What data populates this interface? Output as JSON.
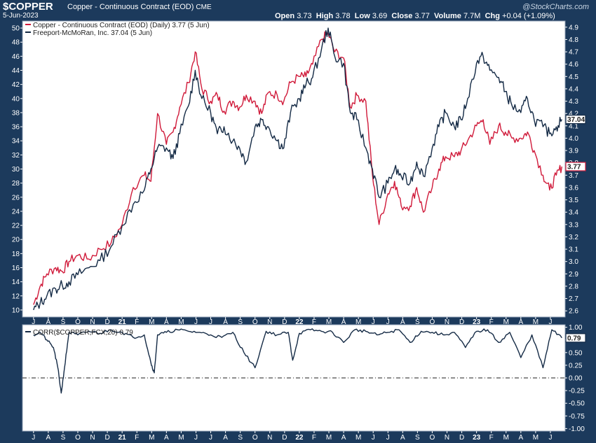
{
  "header": {
    "ticker": "$COPPER",
    "name": "Copper - Continuous Contract (EOD)",
    "exchange": "CME",
    "date": "5-Jun-2023",
    "logo": "@StockCharts.com",
    "ohlc": {
      "open_label": "Open",
      "open": "3.73",
      "high_label": "High",
      "high": "3.78",
      "low_label": "Low",
      "low": "3.69",
      "close_label": "Close",
      "close": "3.77",
      "volume_label": "Volume",
      "volume": "7.7M",
      "chg_label": "Chg",
      "chg": "+0.04 (+1.09%)"
    }
  },
  "colors": {
    "background": "#1c3a5c",
    "panel": "#ffffff",
    "copper": "#d01a3a",
    "fcx": "#142a45",
    "corr": "#142a45"
  },
  "chart_data": [
    {
      "type": "line",
      "legend_position": "top-left",
      "series": [
        {
          "name": "Copper - Continuous Contract (EOD) (Daily) 3.77 (5 Jun)",
          "axis": "right",
          "last_value_label": "3.77",
          "x": [
            0,
            0.3,
            0.6,
            1,
            1.3,
            1.6,
            2,
            2.5,
            3,
            3.5,
            4,
            4.5,
            5,
            5.3,
            5.6,
            6,
            6.3,
            6.6,
            7,
            7.3,
            7.6,
            8,
            8.3,
            8.6,
            9,
            9.3,
            9.6,
            10,
            10.3,
            10.6,
            11,
            11.3,
            11.6,
            12,
            12.3,
            12.6,
            13,
            13.3,
            13.6,
            14,
            14.3,
            14.6,
            15,
            15.3,
            15.6,
            16,
            16.3,
            16.6,
            17,
            17.3,
            17.6,
            18,
            18.3,
            18.6,
            19,
            19.3,
            19.6,
            20,
            20.3,
            20.6,
            21,
            21.3,
            21.6,
            22,
            22.3,
            22.6,
            23,
            23.3,
            23.6,
            23.85
          ],
          "values": [
            2.65,
            2.8,
            2.9,
            2.95,
            2.92,
            3.0,
            3.05,
            3.02,
            3.1,
            3.15,
            3.3,
            3.6,
            3.7,
            3.65,
            4.2,
            3.95,
            4.05,
            4.25,
            4.45,
            4.7,
            4.4,
            4.3,
            4.35,
            4.22,
            4.3,
            4.25,
            4.35,
            4.3,
            4.2,
            4.37,
            4.35,
            4.3,
            4.45,
            4.5,
            4.5,
            4.6,
            4.8,
            4.85,
            4.7,
            4.65,
            4.25,
            4.35,
            4.3,
            3.7,
            3.3,
            3.55,
            3.65,
            3.45,
            3.45,
            3.6,
            3.4,
            3.6,
            3.75,
            3.85,
            3.85,
            3.9,
            3.98,
            4.1,
            4.15,
            3.95,
            4.1,
            4.05,
            4.0,
            4.0,
            4.05,
            3.9,
            3.7,
            3.58,
            3.7,
            3.77
          ]
        },
        {
          "name": "Freeport-McMoRan, Inc. 37.04 (5 Jun)",
          "axis": "left",
          "last_value_label": "37.04",
          "x": [
            0,
            0.3,
            0.6,
            1,
            1.3,
            1.6,
            2,
            2.5,
            3,
            3.5,
            4,
            4.5,
            5,
            5.3,
            5.6,
            6,
            6.3,
            6.6,
            7,
            7.3,
            7.6,
            8,
            8.3,
            8.6,
            9,
            9.3,
            9.6,
            10,
            10.3,
            10.6,
            11,
            11.3,
            11.6,
            12,
            12.3,
            12.6,
            13,
            13.3,
            13.6,
            14,
            14.3,
            14.6,
            15,
            15.3,
            15.6,
            16,
            16.3,
            16.6,
            17,
            17.3,
            17.6,
            18,
            18.3,
            18.6,
            19,
            19.3,
            19.6,
            20,
            20.3,
            20.6,
            21,
            21.3,
            21.6,
            22,
            22.3,
            22.6,
            23,
            23.3,
            23.6,
            23.85
          ],
          "values": [
            10,
            11,
            12,
            13,
            13.5,
            14,
            15,
            16,
            17,
            19,
            22,
            25,
            27,
            30,
            33,
            33,
            31.5,
            35,
            39,
            44,
            40,
            38,
            35,
            36,
            34,
            33,
            31,
            36,
            37,
            36,
            34,
            33,
            38,
            40,
            42,
            43,
            47,
            50,
            46,
            45,
            38,
            37,
            33,
            30,
            26,
            28,
            30,
            29,
            28,
            31,
            29,
            33,
            36,
            38,
            36,
            37,
            40,
            45,
            46,
            44,
            43,
            41,
            39,
            38,
            40,
            37,
            36,
            35,
            36,
            37.04
          ]
        },
        {
          "name": "CORR($COPPER,FCX,20) 0.79",
          "axis": "lower",
          "last_value_label": "0.79",
          "x": [
            0,
            0.3,
            0.6,
            0.9,
            1.1,
            1.25,
            1.4,
            1.6,
            2,
            2.5,
            3,
            3.5,
            4,
            4.5,
            5,
            5.3,
            5.45,
            5.6,
            6,
            6.5,
            7,
            7.5,
            8,
            8.5,
            9,
            9.5,
            10,
            10.5,
            11,
            11.5,
            11.7,
            12,
            12.5,
            13,
            13.5,
            14,
            14.5,
            15,
            15.5,
            16,
            16.5,
            17,
            17.5,
            18,
            18.5,
            19,
            19.5,
            20,
            20.5,
            21,
            21.5,
            22,
            22.5,
            23,
            23.4,
            23.85
          ],
          "values": [
            0.85,
            0.9,
            0.75,
            0.6,
            0.2,
            -0.3,
            0.2,
            0.9,
            0.85,
            0.92,
            0.88,
            0.95,
            0.9,
            0.8,
            0.85,
            0.3,
            0.1,
            0.85,
            0.9,
            0.95,
            0.92,
            0.9,
            0.85,
            0.8,
            0.9,
            0.5,
            0.2,
            0.92,
            0.85,
            0.9,
            0.35,
            0.88,
            0.95,
            0.92,
            0.9,
            0.7,
            0.95,
            0.92,
            0.85,
            0.9,
            0.95,
            0.7,
            0.92,
            0.9,
            0.85,
            0.9,
            0.6,
            0.92,
            0.95,
            0.7,
            0.9,
            0.4,
            0.85,
            0.2,
            0.95,
            0.79
          ]
        }
      ],
      "y_left": {
        "ticks": [
          "10",
          "12",
          "14",
          "16",
          "18",
          "20",
          "22",
          "24",
          "26",
          "28",
          "30",
          "32",
          "34",
          "36",
          "38",
          "40",
          "42",
          "44",
          "46",
          "48",
          "50"
        ],
        "range": [
          9,
          51
        ]
      },
      "y_right": {
        "ticks": [
          "2.6",
          "2.7",
          "2.8",
          "2.9",
          "3.0",
          "3.1",
          "3.2",
          "3.3",
          "3.4",
          "3.5",
          "3.6",
          "3.7",
          "3.8",
          "3.9",
          "4.0",
          "4.1",
          "4.2",
          "4.3",
          "4.4",
          "4.5",
          "4.6",
          "4.7",
          "4.8",
          "4.9"
        ],
        "range": [
          2.55,
          4.95
        ]
      },
      "y_lower": {
        "ticks": [
          "1.00",
          "0.75",
          "0.50",
          "0.25",
          "0.00",
          "-0.25",
          "-0.50",
          "-0.75",
          "-1.00"
        ],
        "range": [
          -1.05,
          1.05
        ],
        "reference_line": 0
      },
      "months": [
        "J",
        "A",
        "S",
        "O",
        "N",
        "D",
        "21",
        "F",
        "M",
        "A",
        "M",
        "J",
        "J",
        "A",
        "S",
        "O",
        "N",
        "D",
        "22",
        "F",
        "M",
        "A",
        "M",
        "J",
        "J",
        "A",
        "S",
        "O",
        "N",
        "D",
        "23",
        "F",
        "M",
        "A",
        "M",
        "J"
      ],
      "year_labels": [
        "21",
        "22",
        "23"
      ],
      "x_range": [
        -0.5,
        24
      ]
    }
  ]
}
